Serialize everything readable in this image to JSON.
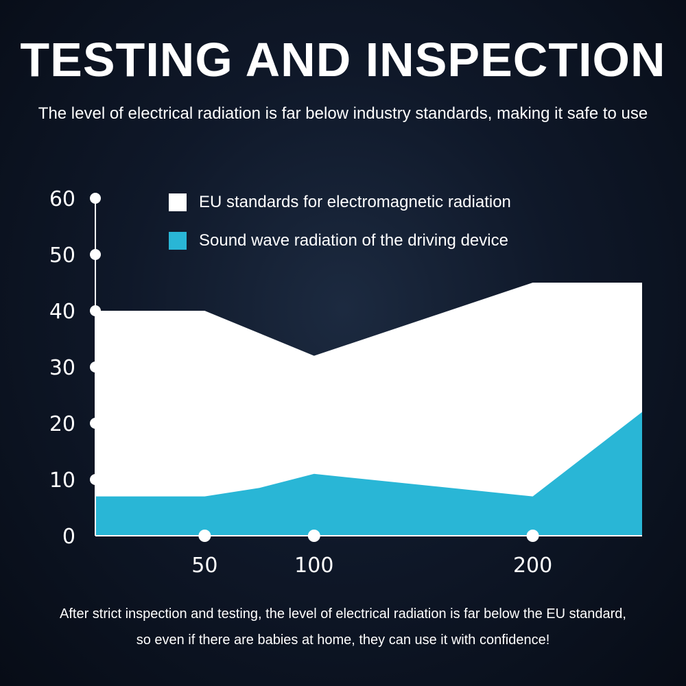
{
  "header": {
    "title": "TESTING AND INSPECTION",
    "subtitle": "The level of electrical radiation is far below industry standards, making it safe to use"
  },
  "footer": {
    "line1": "After strict inspection and testing, the level of electrical radiation is far below the EU standard,",
    "line2": "so even if there are babies at home, they can use it with confidence!"
  },
  "chart_data": {
    "type": "area",
    "x": [
      0,
      50,
      100,
      200,
      250
    ],
    "x_ticks": [
      "50",
      "100",
      "200"
    ],
    "x_tick_values": [
      50,
      100,
      200
    ],
    "y_ticks": [
      "0",
      "10",
      "20",
      "30",
      "40",
      "50",
      "60"
    ],
    "ylim": [
      0,
      60
    ],
    "grid": false,
    "legend_placement": "top-left",
    "series": [
      {
        "name": "EU standards for electromagnetic radiation",
        "color": "#ffffff",
        "points": [
          [
            0,
            40
          ],
          [
            50,
            40
          ],
          [
            100,
            32
          ],
          [
            200,
            45
          ],
          [
            250,
            45
          ]
        ]
      },
      {
        "name": "Sound wave radiation of the driving device",
        "color": "#29b6d6",
        "points": [
          [
            0,
            7
          ],
          [
            50,
            7
          ],
          [
            75,
            8.5
          ],
          [
            100,
            11
          ],
          [
            200,
            7
          ],
          [
            250,
            22
          ]
        ]
      }
    ]
  }
}
